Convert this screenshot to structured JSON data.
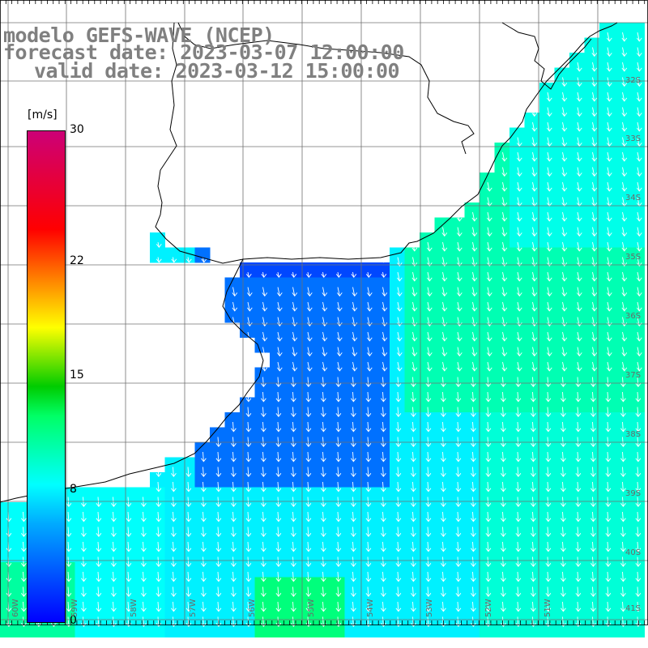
{
  "titles": {
    "model": "modelo GEFS-WAVE (NCEP)",
    "forecast": "forecast date: 2023-03-07 12:00:00",
    "valid": "valid date: 2023-03-12 15:00:00"
  },
  "colorbar": {
    "unit": "[m/s]",
    "ticks": [
      {
        "value": 30,
        "label": "30"
      },
      {
        "value": 22,
        "label": "22"
      },
      {
        "value": 15,
        "label": "15"
      },
      {
        "value": 8,
        "label": "8"
      },
      {
        "value": 0,
        "label": "0"
      }
    ]
  },
  "lat_labels": [
    "32S",
    "33S",
    "34S",
    "35S",
    "36S",
    "37S",
    "38S",
    "39S",
    "40S",
    "41S"
  ],
  "lon_labels": [
    "60W",
    "59W",
    "58W",
    "57W",
    "56W",
    "55W",
    "54W",
    "53W",
    "52W",
    "51W"
  ]
}
